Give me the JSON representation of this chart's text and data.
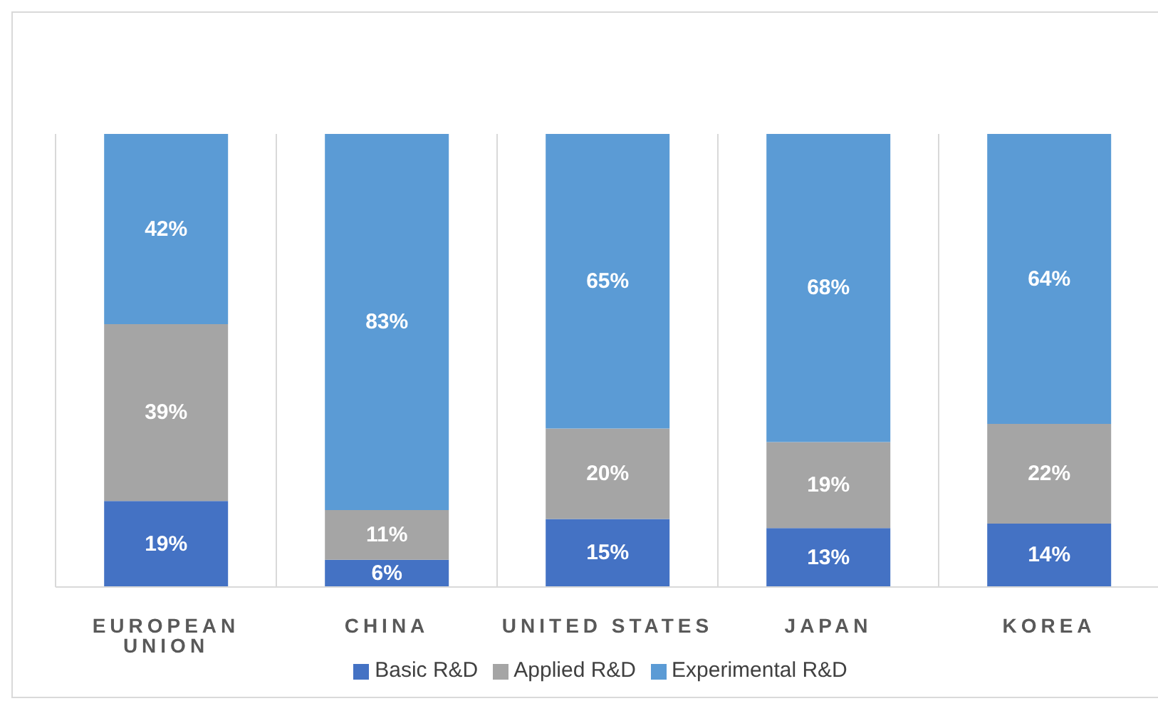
{
  "chart_data": {
    "type": "bar",
    "stacked": true,
    "categories": [
      "EUROPEAN UNION",
      "CHINA",
      "UNITED STATES",
      "JAPAN",
      "KOREA"
    ],
    "series": [
      {
        "name": "Basic R&D",
        "color": "#4472c4",
        "values": [
          19,
          6,
          15,
          13,
          14
        ],
        "value_labels": [
          "19%",
          "6%",
          "15%",
          "13%",
          "14%"
        ]
      },
      {
        "name": "Applied R&D",
        "color": "#a5a5a5",
        "values": [
          39,
          11,
          20,
          19,
          22
        ],
        "value_labels": [
          "39%",
          "11%",
          "20%",
          "19%",
          "22%"
        ]
      },
      {
        "name": "Experimental R&D",
        "color": "#5b9bd5",
        "values": [
          42,
          83,
          65,
          68,
          64
        ],
        "value_labels": [
          "42%",
          "83%",
          "65%",
          "68%",
          "64%"
        ]
      }
    ],
    "grid": "x",
    "legend": "bottom",
    "tick_labels": "x"
  }
}
